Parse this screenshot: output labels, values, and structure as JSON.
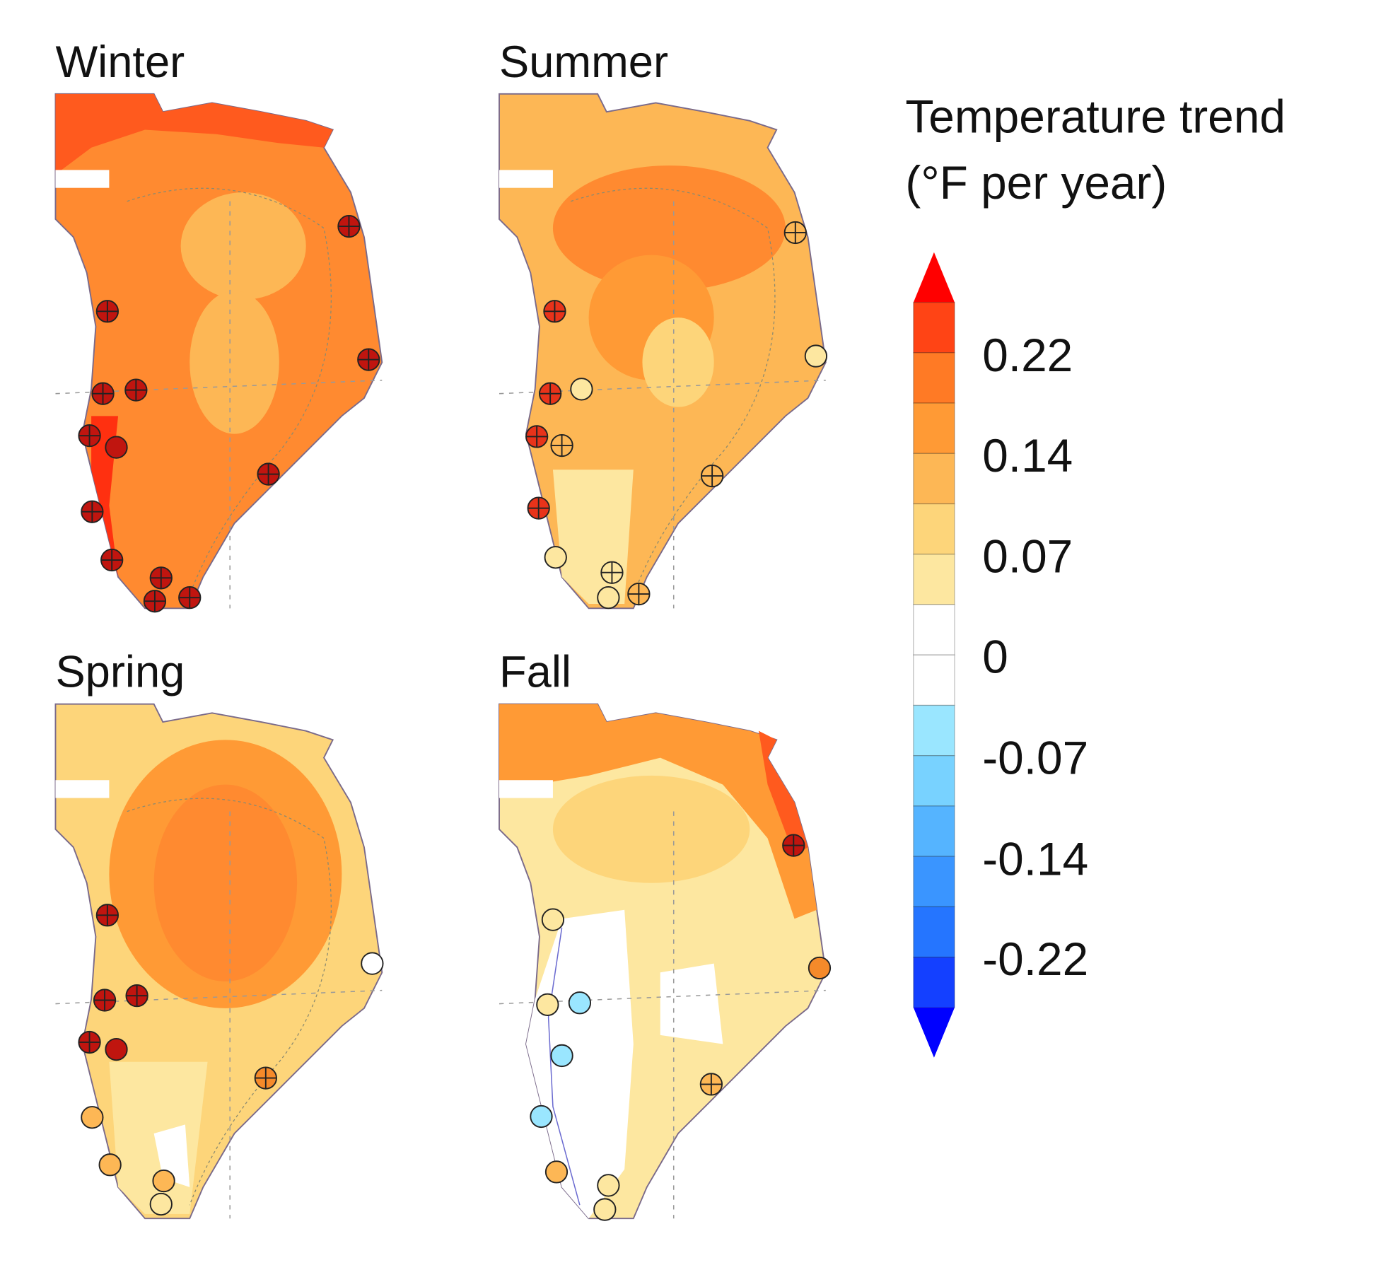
{
  "panels": [
    {
      "title": "Winter",
      "season": "winter"
    },
    {
      "title": "Summer",
      "season": "summer"
    },
    {
      "title": "Spring",
      "season": "spring"
    },
    {
      "title": "Fall",
      "season": "fall"
    }
  ],
  "legend": {
    "title_line1": "Temperature trend",
    "title_line2": "(°F per year)",
    "tick_labels": [
      "0.22",
      "0.14",
      "0.07",
      "0",
      "-0.07",
      "-0.14",
      "-0.22"
    ],
    "segment_colors": [
      "#ff4415",
      "#ff7a25",
      "#ff9a35",
      "#fdb755",
      "#fdd57a",
      "#fde7a0",
      "#ffffff",
      "#ffffff",
      "#9ae6ff",
      "#78d2ff",
      "#55b4ff",
      "#3a95ff",
      "#2575ff",
      "#1440ff"
    ],
    "over_color": "#ff0000",
    "under_color": "#0000ff"
  }
}
